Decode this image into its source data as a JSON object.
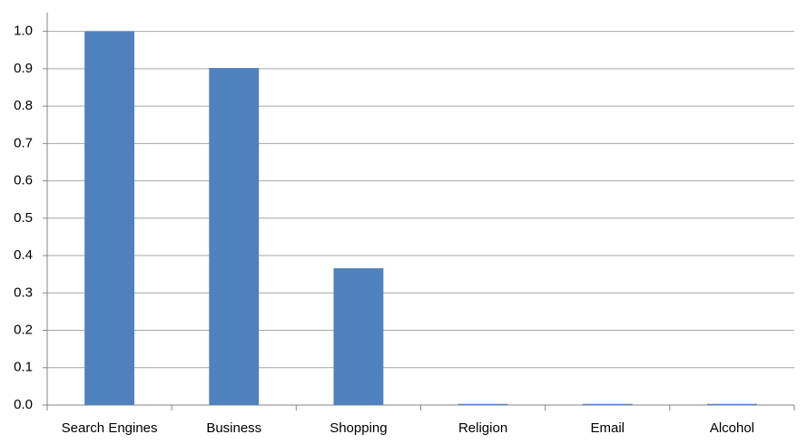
{
  "chart_data": {
    "type": "bar",
    "categories": [
      "Search Engines",
      "Business",
      "Shopping",
      "Religion",
      "Email",
      "Alcohol"
    ],
    "values": [
      1.0,
      0.902,
      0.366,
      0.003,
      0.003,
      0.003
    ],
    "color": "#4f81bd",
    "ylim": [
      0,
      1.05
    ],
    "yticks": [
      {
        "value": 0,
        "label": "0.0"
      },
      0.1,
      0.2,
      0.3,
      0.4,
      0.5,
      0.6,
      0.7,
      0.8,
      0.9,
      {
        "value": 1,
        "label": "1.0"
      }
    ],
    "grid": true
  }
}
